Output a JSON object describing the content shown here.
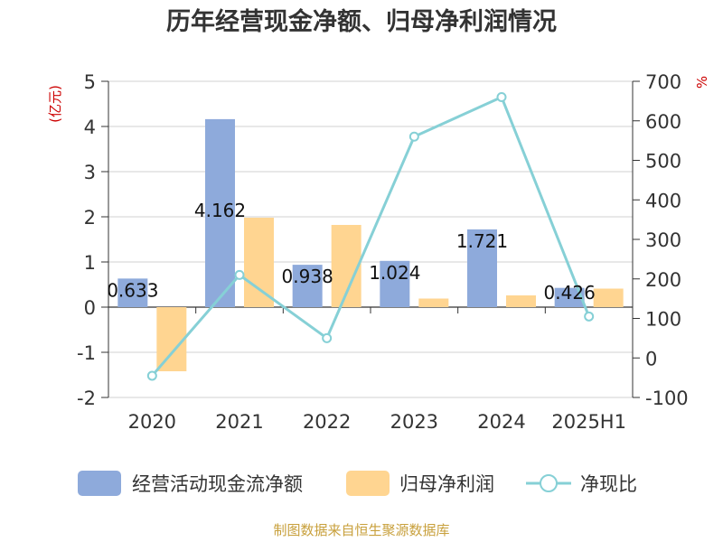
{
  "chart_data": {
    "type": "bar",
    "title": "历年经营现金净额、归母净利润情况",
    "categories": [
      "2020",
      "2021",
      "2022",
      "2023",
      "2024",
      "2025H1"
    ],
    "left_axis": {
      "unit": "(亿元)",
      "ylim": [
        -2,
        5
      ],
      "ticks": [
        -2,
        -1,
        0,
        1,
        2,
        3,
        4,
        5
      ]
    },
    "right_axis": {
      "unit": "%",
      "ylim": [
        -100,
        700
      ],
      "ticks": [
        -100,
        0,
        100,
        200,
        300,
        400,
        500,
        600,
        700
      ]
    },
    "series": [
      {
        "name": "经营活动现金流净额",
        "type": "bar",
        "axis": "left",
        "color": "#8eaadb",
        "values": [
          0.633,
          4.162,
          0.938,
          1.024,
          1.721,
          0.426
        ],
        "labels": [
          "0.633",
          "4.162",
          "0.938",
          "1.024",
          "1.721",
          "0.426"
        ]
      },
      {
        "name": "归母净利润",
        "type": "bar",
        "axis": "left",
        "color": "#ffd591",
        "values": [
          -1.42,
          1.98,
          1.82,
          0.19,
          0.26,
          0.41
        ]
      },
      {
        "name": "净现比",
        "type": "line",
        "axis": "right",
        "color": "#86d0d6",
        "values": [
          -45,
          210,
          50,
          560,
          660,
          105
        ]
      }
    ],
    "grid": true,
    "legend_position": "bottom"
  },
  "source": "制图数据来自恒生聚源数据库"
}
